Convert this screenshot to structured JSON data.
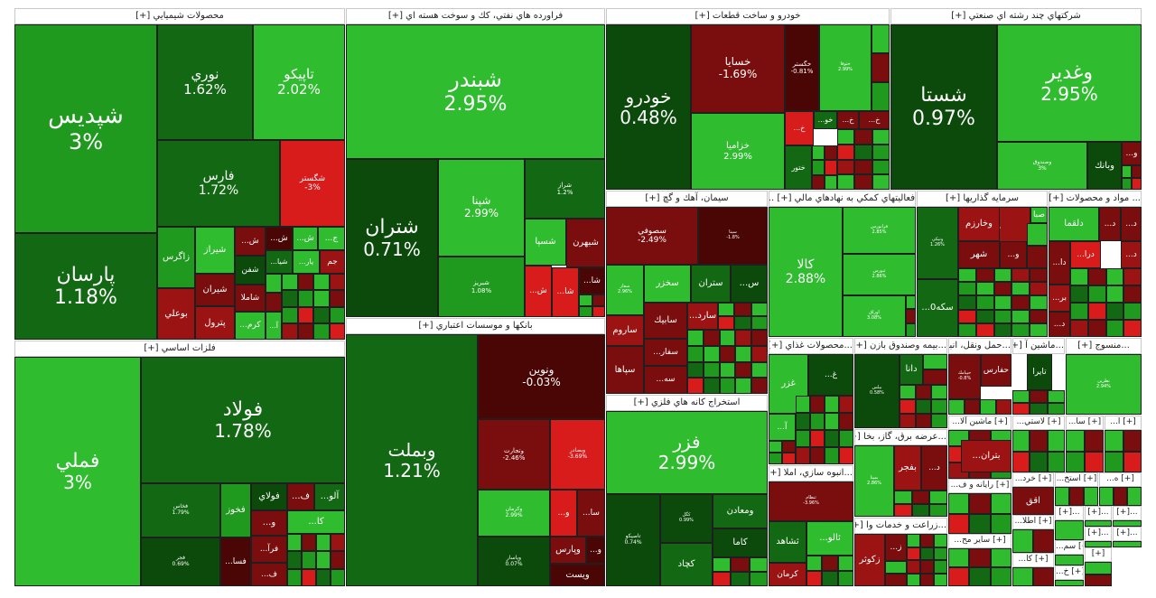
{
  "colors": {
    "green_bright": "#2fbd2f",
    "green_mid": "#1f9a1f",
    "green_dark": "#136913",
    "green_deep": "#0b4a0b",
    "red_dark": "#7a0d0d",
    "red_mid": "#9c1313",
    "red_bright": "#d81c1c",
    "maroon": "#4a0505"
  },
  "sectors": [
    {
      "id": "chem",
      "title": "محصولات شيميايي [+]",
      "tiles": [
        {
          "name": "شپديس",
          "pct": "3%"
        },
        {
          "name": "نوري",
          "pct": "1.62%"
        },
        {
          "name": "تاپيكو",
          "pct": "2.02%"
        },
        {
          "name": "فارس",
          "pct": "1.72%"
        },
        {
          "name": "شگستر",
          "pct": "-3%"
        },
        {
          "name": "پارسان",
          "pct": "1.18%"
        },
        {
          "name": "زاگرس",
          "pct": ""
        },
        {
          "name": "شيراز",
          "pct": ""
        },
        {
          "name": "...ش",
          "pct": ""
        },
        {
          "name": "...ش",
          "pct": ""
        },
        {
          "name": "...ش",
          "pct": ""
        },
        {
          "name": "...ج",
          "pct": ""
        },
        {
          "name": "شفن",
          "pct": ""
        },
        {
          "name": "...شيا",
          "pct": ""
        },
        {
          "name": "...يار",
          "pct": ""
        },
        {
          "name": "جم",
          "pct": ""
        },
        {
          "name": "بوعلي",
          "pct": ""
        },
        {
          "name": "شيران",
          "pct": ""
        },
        {
          "name": "شاملا",
          "pct": ""
        },
        {
          "name": "پترول",
          "pct": ""
        },
        {
          "name": "...كرم",
          "pct": ""
        },
        {
          "name": "...آ",
          "pct": ""
        }
      ]
    },
    {
      "id": "oil",
      "title": "فراورده هاي نفتي، كك و سوخت هسته اي [+]",
      "tiles": [
        {
          "name": "شبندر",
          "pct": "2.95%"
        },
        {
          "name": "شتران",
          "pct": "0.71%"
        },
        {
          "name": "شپنا",
          "pct": "2.99%"
        },
        {
          "name": "شراز",
          "pct": "1.2%"
        },
        {
          "name": "شبريز",
          "pct": "1.08%"
        },
        {
          "name": "شسپا",
          "pct": ""
        },
        {
          "name": "شبهرن",
          "pct": ""
        },
        {
          "name": "...ش",
          "pct": ""
        },
        {
          "name": "...شا",
          "pct": ""
        }
      ]
    },
    {
      "id": "auto",
      "title": "خودرو و ساخت قطعات [+]",
      "tiles": [
        {
          "name": "خودرو",
          "pct": "0.48%"
        },
        {
          "name": "خسايا",
          "pct": "-1.69%"
        },
        {
          "name": "خگستر",
          "pct": "-0.81%"
        },
        {
          "name": "ختوقا",
          "pct": "2.99%"
        },
        {
          "name": "خزاميا",
          "pct": "2.99%"
        },
        {
          "name": "...خ",
          "pct": ""
        },
        {
          "name": "...خو",
          "pct": ""
        },
        {
          "name": "...خ",
          "pct": ""
        },
        {
          "name": "...خ",
          "pct": ""
        },
        {
          "name": "ختور",
          "pct": ""
        }
      ]
    },
    {
      "id": "multi",
      "title": "شركتهاي چند رشته اي صنعتي [+]",
      "tiles": [
        {
          "name": "شستا",
          "pct": "0.97%"
        },
        {
          "name": "وغدير",
          "pct": "2.95%"
        },
        {
          "name": "وصندوق",
          "pct": "3%"
        },
        {
          "name": "وبانك",
          "pct": ""
        },
        {
          "name": "...و",
          "pct": ""
        }
      ]
    },
    {
      "id": "metal",
      "title": "فلزات اساسي [+]",
      "tiles": [
        {
          "name": "فملي",
          "pct": "3%"
        },
        {
          "name": "فولاد",
          "pct": "1.78%"
        },
        {
          "name": "فخاس",
          "pct": "1.79%"
        },
        {
          "name": "فخوز",
          "pct": ""
        },
        {
          "name": "فولاي",
          "pct": ""
        },
        {
          "name": "...ف",
          "pct": ""
        },
        {
          "name": "...آلو",
          "pct": ""
        },
        {
          "name": "...كا",
          "pct": ""
        },
        {
          "name": "...و",
          "pct": ""
        },
        {
          "name": "فجر",
          "pct": "0.69%"
        },
        {
          "name": "...فسا",
          "pct": ""
        },
        {
          "name": "...فرآ",
          "pct": ""
        },
        {
          "name": "...ف",
          "pct": ""
        }
      ]
    },
    {
      "id": "bank",
      "title": "بانكها و موسسات اعتباري [+]",
      "tiles": [
        {
          "name": "وبملت",
          "pct": "1.21%"
        },
        {
          "name": "ونوين",
          "pct": "-0.03%"
        },
        {
          "name": "وتجارت",
          "pct": "-2.46%"
        },
        {
          "name": "وبصادر",
          "pct": "-3.69%"
        },
        {
          "name": "وكرمان",
          "pct": "2.99%"
        },
        {
          "name": "...و",
          "pct": ""
        },
        {
          "name": "...سا",
          "pct": ""
        },
        {
          "name": "وپاسار",
          "pct": "0.07%"
        },
        {
          "name": "وپارس",
          "pct": ""
        },
        {
          "name": "...و",
          "pct": ""
        },
        {
          "name": "ويست",
          "pct": ""
        }
      ]
    },
    {
      "id": "cement",
      "title": "سيمان، آهك و گچ [+]",
      "tiles": [
        {
          "name": "سصوفي",
          "pct": "-2.49%"
        },
        {
          "name": "سيتا",
          "pct": "-1.8%"
        },
        {
          "name": "سفار",
          "pct": "2.96%"
        },
        {
          "name": "سخزر",
          "pct": ""
        },
        {
          "name": "ستران",
          "pct": ""
        },
        {
          "name": "...س",
          "pct": ""
        },
        {
          "name": "ساروم",
          "pct": ""
        },
        {
          "name": "سابيك",
          "pct": ""
        },
        {
          "name": "...سارد",
          "pct": ""
        },
        {
          "name": "...سفار",
          "pct": ""
        },
        {
          "name": "سپاها",
          "pct": ""
        },
        {
          "name": "...سه",
          "pct": ""
        }
      ]
    },
    {
      "id": "finance",
      "title": "فعاليتهاي كمكي به نهادهاي مالي [+] ...",
      "tiles": [
        {
          "name": "كالا",
          "pct": "2.88%"
        },
        {
          "name": "فرابورس",
          "pct": "2.85%"
        },
        {
          "name": "ثبورس",
          "pct": "2.86%"
        },
        {
          "name": "اوراق",
          "pct": "3.08%"
        }
      ]
    },
    {
      "id": "invest",
      "title": "سرمايه گذاريها [+]",
      "tiles": [
        {
          "name": "ونيكي",
          "pct": "1.26%"
        },
        {
          "name": "صبا",
          "pct": ""
        },
        {
          "name": "وخارزم",
          "pct": ""
        },
        {
          "name": "...و",
          "pct": ""
        },
        {
          "name": "شهر",
          "pct": ""
        },
        {
          "name": "...سكه0",
          "pct": ""
        }
      ]
    },
    {
      "id": "materials",
      "title": "... مواد و محصولات [+]",
      "tiles": [
        {
          "name": "دلقما",
          "pct": ""
        },
        {
          "name": "...د",
          "pct": ""
        },
        {
          "name": "...د",
          "pct": ""
        },
        {
          "name": "...د",
          "pct": ""
        },
        {
          "name": "...درا",
          "pct": ""
        },
        {
          "name": "...دا",
          "pct": ""
        },
        {
          "name": "...بر",
          "pct": ""
        },
        {
          "name": "...د",
          "pct": ""
        },
        {
          "name": "...د",
          "pct": ""
        }
      ]
    },
    {
      "id": "extract",
      "title": "استخراج كانه هاي فلزي [+]",
      "tiles": [
        {
          "name": "فزر",
          "pct": "2.99%"
        },
        {
          "name": "تاصيكو",
          "pct": "0.74%"
        },
        {
          "name": "كگل",
          "pct": "0.99%"
        },
        {
          "name": "ومعادن",
          "pct": ""
        },
        {
          "name": "كاما",
          "pct": ""
        },
        {
          "name": "كچاد",
          "pct": ""
        }
      ]
    },
    {
      "id": "food",
      "title": "...محصولات غذاي [+]",
      "tiles": [
        {
          "name": "غزر",
          "pct": ""
        },
        {
          "name": "...غ",
          "pct": ""
        },
        {
          "name": "...آ",
          "pct": ""
        }
      ]
    },
    {
      "id": "insurance",
      "title": "...بيمه وصندوق بازن [+]",
      "tiles": [
        {
          "name": "بيلس",
          "pct": "0.58%"
        },
        {
          "name": "دانا",
          "pct": ""
        }
      ]
    },
    {
      "id": "transport",
      "title": "...حمل ونقل، انبا [+]",
      "tiles": [
        {
          "name": "حفارس",
          "pct": ""
        },
        {
          "name": "حپيامك",
          "pct": "-0.8%"
        }
      ]
    },
    {
      "id": "machines",
      "title": "...ماشين آ [+]",
      "tiles": [
        {
          "name": "تايرا",
          "pct": ""
        }
      ]
    },
    {
      "id": "textile",
      "title": "...منسوج [+]",
      "tiles": [
        {
          "name": "نطرين",
          "pct": "2.94%"
        }
      ]
    },
    {
      "id": "utility",
      "title": "...عرضه برق، گاز، بخا [+]",
      "tiles": [
        {
          "name": "بفجر",
          "pct": ""
        },
        {
          "name": "...د",
          "pct": ""
        },
        {
          "name": "بمپنا",
          "pct": "2.86%"
        }
      ]
    },
    {
      "id": "mass",
      "title": "...انبوه سازي، املا [+]",
      "tiles": [
        {
          "name": "ثنظام",
          "pct": "-3.96%"
        },
        {
          "name": "...ثالو",
          "pct": ""
        },
        {
          "name": "ثشاهد",
          "pct": ""
        },
        {
          "name": "كرمان",
          "pct": ""
        }
      ]
    },
    {
      "id": "agri",
      "title": "...زراعت و خدمات وا [+]",
      "tiles": [
        {
          "name": "زكوثر",
          "pct": ""
        },
        {
          "name": "...ز",
          "pct": ""
        }
      ]
    },
    {
      "id": "smallheads",
      "labels": [
        "...ماشين آلا [+]",
        "...لاستي [+]",
        "...سا [+]",
        "...ا [+]",
        "...رايانه و ف [+]",
        "...ساير مح [+]",
        "...خرد [+]",
        "...استخ [+]",
        "...ه [+]",
        "...اطلا [+]",
        "[+]...",
        "[+]...",
        "[+]...",
        "[+]...",
        "[+]...",
        "...سم [+]",
        "...كا [+]",
        "...خ [+]",
        "[+]"
      ],
      "tiles": [
        {
          "name": "...بتران",
          "pct": ""
        },
        {
          "name": "اقق",
          "pct": ""
        }
      ]
    }
  ]
}
